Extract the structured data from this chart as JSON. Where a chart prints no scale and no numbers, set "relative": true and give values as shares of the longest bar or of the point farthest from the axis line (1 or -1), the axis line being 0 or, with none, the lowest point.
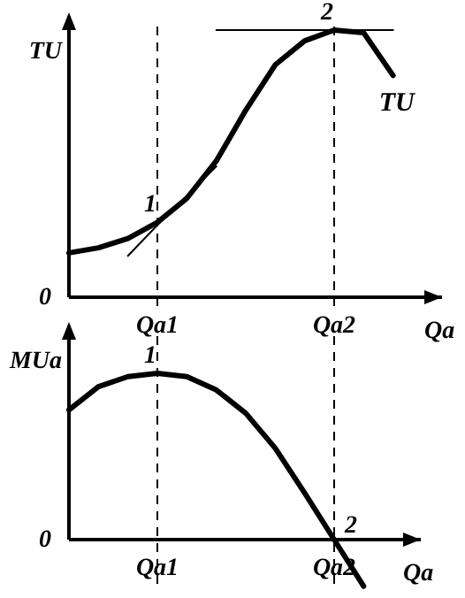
{
  "chart_data": [
    {
      "type": "line",
      "relative": true,
      "xlabel": "Qa",
      "ylabel": "TU",
      "categories": [
        null,
        null,
        null,
        "Qa1",
        null,
        null,
        null,
        null,
        null,
        "Qa2",
        null,
        null,
        null
      ],
      "marker": "none",
      "line_style": "solid",
      "grid": false,
      "legend": false,
      "series": [
        {
          "name": "TU",
          "color": "#000000",
          "values": [
            0.166,
            0.185,
            0.22,
            0.28,
            0.37,
            0.51,
            0.7,
            0.87,
            0.96,
            1,
            0.99,
            0.83,
            null
          ]
        },
        {
          "color": "#000000",
          "values": [
            null,
            null,
            0.155,
            0.27,
            0.38,
            0.49,
            null,
            null,
            null,
            null,
            null,
            null,
            null
          ]
        },
        {
          "color": "#000000",
          "values": [
            null,
            null,
            null,
            null,
            null,
            1,
            1,
            1,
            1,
            1,
            1,
            1,
            null
          ]
        }
      ],
      "ref_lines": [
        {
          "axis": "x",
          "value": "Qa1",
          "line_style": "dashed"
        },
        {
          "axis": "x",
          "value": "Qa2",
          "line_style": "dashed"
        }
      ],
      "annotations": [
        "0",
        {
          "text": "1",
          "x": "Qa1",
          "y": 0.28
        },
        {
          "text": "2",
          "x": "Qa2",
          "y": 1
        }
      ]
    },
    {
      "type": "line",
      "relative": true,
      "xlabel": "Qa",
      "ylabel": "MUa",
      "categories": [
        null,
        null,
        null,
        "Qa1",
        null,
        null,
        null,
        null,
        null,
        "Qa2",
        null,
        null,
        null
      ],
      "marker": "none",
      "line_style": "solid",
      "grid": false,
      "legend": false,
      "series": [
        {
          "color": "#000000",
          "values": [
            0.78,
            0.92,
            0.98,
            1,
            0.98,
            0.9,
            0.76,
            0.55,
            0.28,
            0,
            -0.28,
            null,
            null
          ]
        }
      ],
      "ref_lines": [
        {
          "axis": "x",
          "value": "Qa1",
          "line_style": "dashed"
        },
        {
          "axis": "x",
          "value": "Qa2",
          "line_style": "dashed"
        }
      ],
      "annotations": [
        "0",
        {
          "text": "1",
          "x": "Qa1",
          "y": 1
        },
        {
          "text": "2",
          "x": "Qa2",
          "y": 0
        }
      ]
    }
  ]
}
